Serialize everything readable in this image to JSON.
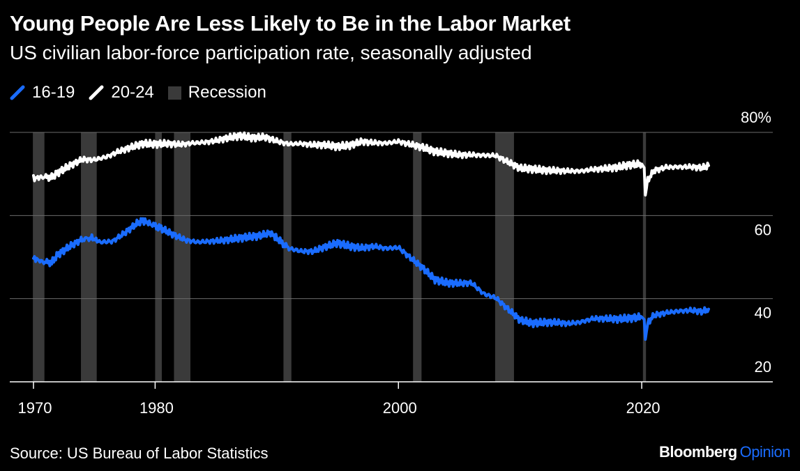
{
  "chart_data": {
    "type": "line",
    "title": "Young People Are Less Likely to Be in the Labor Market",
    "subtitle": "US civilian labor-force participation rate, seasonally adjusted",
    "legend": [
      {
        "label": "16-19",
        "color": "#1a6cff",
        "kind": "line"
      },
      {
        "label": "20-24",
        "color": "#ffffff",
        "kind": "line"
      },
      {
        "label": "Recession",
        "color": "#3a3a3a",
        "kind": "box"
      }
    ],
    "y_ticks": [
      "80%",
      "60",
      "40",
      "20"
    ],
    "x_ticks": [
      "1970",
      "1980",
      "2000",
      "2020"
    ],
    "xlim": [
      1970,
      2025.5
    ],
    "ylim": [
      20,
      80
    ],
    "grid": true,
    "recessions": [
      [
        1969.95,
        1970.9
      ],
      [
        1973.9,
        1975.2
      ],
      [
        1980.0,
        1980.55
      ],
      [
        1981.55,
        1982.9
      ],
      [
        1990.55,
        1991.2
      ],
      [
        2001.2,
        2001.9
      ],
      [
        2007.95,
        2009.5
      ],
      [
        2020.1,
        2020.35
      ]
    ],
    "series": [
      {
        "name": "16-19",
        "color": "#1a6cff",
        "points": [
          [
            1970.0,
            49.8
          ],
          [
            1970.7,
            48.9
          ],
          [
            1971.5,
            48.7
          ],
          [
            1972.0,
            50.6
          ],
          [
            1973.0,
            52.6
          ],
          [
            1974.0,
            54.3
          ],
          [
            1974.8,
            54.6
          ],
          [
            1975.5,
            53.6
          ],
          [
            1976.5,
            53.8
          ],
          [
            1977.5,
            55.8
          ],
          [
            1978.5,
            58.1
          ],
          [
            1979.0,
            58.8
          ],
          [
            1979.7,
            57.9
          ],
          [
            1980.5,
            56.9
          ],
          [
            1981.5,
            55.4
          ],
          [
            1982.5,
            54.1
          ],
          [
            1983.5,
            53.6
          ],
          [
            1984.5,
            53.8
          ],
          [
            1985.5,
            54.0
          ],
          [
            1986.5,
            54.4
          ],
          [
            1987.5,
            54.8
          ],
          [
            1988.5,
            55.1
          ],
          [
            1989.5,
            55.8
          ],
          [
            1990.2,
            54.0
          ],
          [
            1991.0,
            52.1
          ],
          [
            1992.0,
            51.4
          ],
          [
            1993.0,
            51.4
          ],
          [
            1994.0,
            52.5
          ],
          [
            1995.0,
            53.4
          ],
          [
            1996.0,
            52.6
          ],
          [
            1997.0,
            52.2
          ],
          [
            1998.0,
            52.6
          ],
          [
            1999.0,
            52.1
          ],
          [
            2000.0,
            52.3
          ],
          [
            2001.0,
            49.8
          ],
          [
            2002.0,
            47.4
          ],
          [
            2003.0,
            44.6
          ],
          [
            2004.0,
            43.8
          ],
          [
            2005.0,
            43.7
          ],
          [
            2006.0,
            43.8
          ],
          [
            2007.0,
            41.2
          ],
          [
            2008.0,
            40.2
          ],
          [
            2009.0,
            37.5
          ],
          [
            2010.0,
            34.9
          ],
          [
            2011.0,
            34.1
          ],
          [
            2012.0,
            34.3
          ],
          [
            2013.0,
            34.3
          ],
          [
            2014.0,
            34.0
          ],
          [
            2015.0,
            34.4
          ],
          [
            2016.0,
            35.2
          ],
          [
            2017.0,
            35.2
          ],
          [
            2018.0,
            35.1
          ],
          [
            2019.0,
            35.3
          ],
          [
            2020.0,
            35.6
          ],
          [
            2020.2,
            35.0
          ],
          [
            2020.3,
            30.2
          ],
          [
            2020.5,
            34.2
          ],
          [
            2021.0,
            36.0
          ],
          [
            2022.0,
            36.6
          ],
          [
            2023.0,
            37.0
          ],
          [
            2024.0,
            37.2
          ],
          [
            2025.0,
            36.9
          ],
          [
            2025.5,
            37.5
          ]
        ]
      },
      {
        "name": "20-24",
        "color": "#ffffff",
        "points": [
          [
            1970.0,
            68.9
          ],
          [
            1970.7,
            69.3
          ],
          [
            1971.5,
            69.2
          ],
          [
            1972.0,
            70.3
          ],
          [
            1973.0,
            72.0
          ],
          [
            1974.0,
            73.5
          ],
          [
            1975.0,
            73.4
          ],
          [
            1976.0,
            74.1
          ],
          [
            1977.0,
            75.4
          ],
          [
            1978.0,
            76.4
          ],
          [
            1979.0,
            77.3
          ],
          [
            1980.0,
            77.2
          ],
          [
            1981.0,
            77.3
          ],
          [
            1982.0,
            77.1
          ],
          [
            1983.0,
            77.4
          ],
          [
            1984.0,
            77.6
          ],
          [
            1985.0,
            78.0
          ],
          [
            1986.0,
            78.7
          ],
          [
            1987.0,
            79.2
          ],
          [
            1988.0,
            78.7
          ],
          [
            1989.0,
            78.9
          ],
          [
            1990.0,
            77.9
          ],
          [
            1991.0,
            77.2
          ],
          [
            1992.0,
            77.3
          ],
          [
            1993.0,
            77.0
          ],
          [
            1994.0,
            77.0
          ],
          [
            1995.0,
            76.6
          ],
          [
            1996.0,
            76.9
          ],
          [
            1997.0,
            77.8
          ],
          [
            1998.0,
            77.5
          ],
          [
            1999.0,
            77.4
          ],
          [
            2000.0,
            77.8
          ],
          [
            2001.0,
            77.1
          ],
          [
            2002.0,
            76.4
          ],
          [
            2003.0,
            75.4
          ],
          [
            2004.0,
            75.0
          ],
          [
            2005.0,
            74.6
          ],
          [
            2006.0,
            74.6
          ],
          [
            2007.0,
            74.5
          ],
          [
            2008.0,
            74.4
          ],
          [
            2009.0,
            72.9
          ],
          [
            2010.0,
            71.4
          ],
          [
            2011.0,
            71.2
          ],
          [
            2012.0,
            70.9
          ],
          [
            2013.0,
            70.8
          ],
          [
            2014.0,
            70.7
          ],
          [
            2015.0,
            70.7
          ],
          [
            2016.0,
            71.1
          ],
          [
            2017.0,
            71.3
          ],
          [
            2018.0,
            71.6
          ],
          [
            2019.0,
            72.2
          ],
          [
            2020.0,
            72.4
          ],
          [
            2020.2,
            71.5
          ],
          [
            2020.3,
            64.9
          ],
          [
            2020.5,
            68.5
          ],
          [
            2021.0,
            70.8
          ],
          [
            2022.0,
            71.6
          ],
          [
            2023.0,
            71.7
          ],
          [
            2024.0,
            71.7
          ],
          [
            2025.0,
            71.5
          ],
          [
            2025.5,
            72.0
          ]
        ]
      }
    ]
  },
  "footer": {
    "source": "Source: US Bureau of Labor Statistics",
    "brand_main": "Bloomberg",
    "brand_accent": "Opinion"
  },
  "colors": {
    "background": "#000000",
    "grid": "#6b6b6b",
    "axis": "#ffffff",
    "recession": "#3a3a3a",
    "brand_accent": "#1a6cff"
  }
}
